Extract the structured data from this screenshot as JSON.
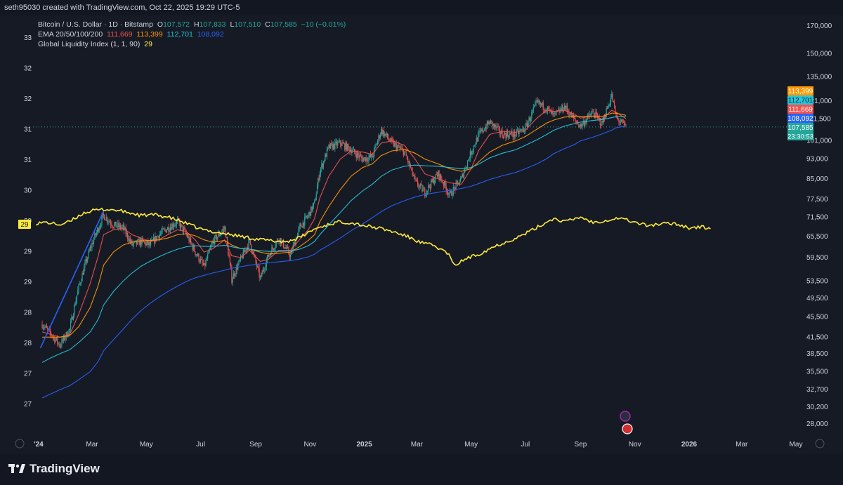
{
  "header": {
    "caption": "seth95030 created with TradingView.com, Oct 22, 2025 19:29 UTC-5"
  },
  "legend": {
    "symbol": "Bitcoin / U.S. Dollar · 1D · Bitstamp",
    "o_label": "O",
    "o_value": "107,572",
    "h_label": "H",
    "h_value": "107,833",
    "l_label": "L",
    "l_value": "107,510",
    "c_label": "C",
    "c_value": "107,585",
    "change": "−10 (−0.01%)",
    "ema_label": "EMA 20/50/100/200",
    "ema_values": [
      "111,669",
      "113,399",
      "112,701",
      "108,092"
    ],
    "gli_label": "Global Liquidity Index (1, 1, 90)",
    "gli_value": "29"
  },
  "footer": {
    "brand": "TradingView"
  },
  "colors": {
    "background": "#161a25",
    "candle_up": "#26a69a",
    "candle_down": "#ef5350",
    "ema20": "#ef5350",
    "ema50": "#ff9800",
    "ema100": "#26c6da",
    "ema200": "#2962ff",
    "liquidity": "#ffeb3b",
    "trendline": "#2962ff"
  },
  "chart_data": {
    "type": "line",
    "x_axis": {
      "labels": [
        "2024",
        "Mar",
        "May",
        "Jul",
        "Sep",
        "Nov",
        "2025",
        "Mar",
        "May",
        "Jul",
        "Sep",
        "Nov",
        "2026",
        "Mar",
        "May"
      ],
      "bold": [
        true,
        false,
        false,
        false,
        false,
        false,
        true,
        false,
        false,
        false,
        false,
        false,
        true,
        false,
        false
      ]
    },
    "left_axis": {
      "ticks": [
        "33",
        "32",
        "32",
        "31",
        "31",
        "30",
        "29",
        "29",
        "29",
        "28",
        "28",
        "27",
        "27"
      ]
    },
    "right_axis": {
      "scale": "log",
      "ticks": [
        170000,
        150000,
        135000,
        121000,
        111500,
        101000,
        93000,
        85000,
        77500,
        71500,
        65500,
        59500,
        53500,
        49500,
        45500,
        41500,
        38500,
        35500,
        32700,
        30200,
        28000
      ],
      "tick_labels": [
        "170,000",
        "150,000",
        "135,000",
        "121,000",
        "111,500",
        "101,000",
        "93,000",
        "85,000",
        "77,500",
        "71,500",
        "65,500",
        "59,500",
        "53,500",
        "49,500",
        "45,500",
        "41,500",
        "38,500",
        "35,500",
        "32,700",
        "30,200",
        "28,000"
      ]
    },
    "price_tags": [
      {
        "value": "113,399",
        "color": "#ff9800",
        "price": 113399
      },
      {
        "value": "112,701",
        "color": "#26c6da",
        "price": 112701
      },
      {
        "value": "111,669",
        "color": "#ef5350",
        "price": 111669
      },
      {
        "value": "108,092",
        "color": "#2962ff",
        "price": 108092
      },
      {
        "value": "107,585",
        "color": "#26a69a",
        "price": 107585
      }
    ],
    "countdown": "23:30:53",
    "liquidity_tag": "29",
    "series": [
      {
        "name": "Bitcoin / U.S. Dollar",
        "kind": "candles",
        "dates": [
          "2024-01-05",
          "2024-01-15",
          "2024-01-25",
          "2024-02-05",
          "2024-02-15",
          "2024-02-28",
          "2024-03-08",
          "2024-03-14",
          "2024-03-25",
          "2024-04-05",
          "2024-04-15",
          "2024-04-25",
          "2024-05-05",
          "2024-05-15",
          "2024-05-25",
          "2024-06-05",
          "2024-06-15",
          "2024-06-25",
          "2024-07-05",
          "2024-07-15",
          "2024-07-28",
          "2024-08-05",
          "2024-08-15",
          "2024-08-25",
          "2024-09-06",
          "2024-09-15",
          "2024-09-27",
          "2024-10-10",
          "2024-10-20",
          "2024-10-30",
          "2024-11-06",
          "2024-11-12",
          "2024-11-22",
          "2024-12-05",
          "2024-12-17",
          "2024-12-30",
          "2025-01-10",
          "2025-01-20",
          "2025-02-01",
          "2025-02-15",
          "2025-02-27",
          "2025-03-10",
          "2025-03-25",
          "2025-04-07",
          "2025-04-20",
          "2025-05-01",
          "2025-05-10",
          "2025-05-22",
          "2025-06-05",
          "2025-06-20",
          "2025-07-01",
          "2025-07-14",
          "2025-07-25",
          "2025-08-02",
          "2025-08-14",
          "2025-08-25",
          "2025-09-01",
          "2025-09-15",
          "2025-09-25",
          "2025-10-06",
          "2025-10-11",
          "2025-10-22"
        ],
        "close": [
          44000,
          42000,
          40000,
          43000,
          52000,
          62000,
          68000,
          72000,
          69000,
          68000,
          63000,
          64000,
          63000,
          66000,
          68000,
          70000,
          66000,
          61000,
          57000,
          64000,
          68000,
          54000,
          59000,
          64000,
          54000,
          60000,
          65000,
          60000,
          68000,
          72000,
          76000,
          88000,
          98000,
          100000,
          97000,
          93000,
          94000,
          106000,
          100000,
          96000,
          84000,
          80000,
          87000,
          79000,
          85000,
          96000,
          104000,
          110000,
          104000,
          104000,
          107000,
          120000,
          117000,
          113000,
          118000,
          111000,
          108000,
          115000,
          109000,
          124000,
          112000,
          107585
        ]
      },
      {
        "name": "EMA 20",
        "values": [
          42500,
          42000,
          41500,
          42000,
          46000,
          53000,
          60000,
          66000,
          67500,
          68000,
          66000,
          65000,
          64000,
          64500,
          66000,
          67500,
          67000,
          64500,
          61000,
          62000,
          64500,
          60000,
          59500,
          61500,
          58500,
          59000,
          61500,
          61500,
          64500,
          67500,
          71000,
          78000,
          86000,
          93000,
          96500,
          96000,
          95000,
          100000,
          101000,
          99000,
          93000,
          87000,
          85000,
          83500,
          83000,
          89000,
          97000,
          104000,
          105500,
          105000,
          106000,
          112000,
          116000,
          115500,
          116000,
          114000,
          112000,
          113000,
          111500,
          116000,
          115000,
          111669
        ]
      },
      {
        "name": "EMA 50",
        "values": [
          41500,
          41500,
          41500,
          41800,
          43500,
          47500,
          52500,
          57500,
          61000,
          63000,
          63800,
          64200,
          64300,
          64500,
          65000,
          66000,
          66300,
          65700,
          64500,
          63800,
          64300,
          63000,
          62000,
          61800,
          61000,
          60500,
          60700,
          61000,
          62500,
          64300,
          66000,
          70000,
          75000,
          81000,
          86000,
          89500,
          91000,
          94500,
          96500,
          97200,
          95500,
          93000,
          91000,
          89000,
          88000,
          89000,
          92000,
          96000,
          99000,
          101000,
          103000,
          106500,
          109500,
          111000,
          112500,
          113000,
          112700,
          113000,
          112800,
          114500,
          114500,
          113399
        ]
      },
      {
        "name": "EMA 100",
        "values": [
          37000,
          37800,
          38500,
          39200,
          40500,
          42500,
          45000,
          48000,
          51000,
          53500,
          55500,
          57200,
          58500,
          59700,
          60800,
          61800,
          62500,
          62800,
          62600,
          62600,
          62900,
          62500,
          62000,
          61800,
          61400,
          61200,
          61200,
          61300,
          61800,
          62800,
          64000,
          66000,
          69000,
          73000,
          77000,
          80500,
          83000,
          86000,
          88500,
          90000,
          90500,
          90200,
          90000,
          89500,
          89000,
          89500,
          91000,
          93500,
          95500,
          97000,
          99000,
          101500,
          104000,
          106000,
          108000,
          109200,
          110000,
          110800,
          111200,
          112200,
          112700,
          112701
        ]
      },
      {
        "name": "EMA 200",
        "values": [
          31500,
          32100,
          32700,
          33300,
          34200,
          35500,
          37200,
          39000,
          41000,
          43000,
          45000,
          46800,
          48300,
          49700,
          51000,
          52300,
          53400,
          54300,
          54900,
          55500,
          56200,
          56700,
          57100,
          57500,
          57800,
          58100,
          58400,
          58700,
          59100,
          59700,
          60400,
          61500,
          63000,
          65000,
          67200,
          69300,
          71300,
          73300,
          75300,
          77000,
          78300,
          79200,
          80000,
          80700,
          81400,
          82200,
          83300,
          84800,
          86200,
          87500,
          89000,
          91000,
          93200,
          95300,
          97500,
          99300,
          101000,
          102700,
          104200,
          106000,
          107200,
          108092
        ]
      },
      {
        "name": "Global Liquidity Index (1, 1, 90)",
        "dates": [
          "2023-12-29",
          "2024-01-10",
          "2024-01-25",
          "2024-02-05",
          "2024-02-20",
          "2024-03-01",
          "2024-03-15",
          "2024-03-28",
          "2024-04-10",
          "2024-04-25",
          "2024-05-10",
          "2024-05-25",
          "2024-06-10",
          "2024-06-25",
          "2024-07-05",
          "2024-07-20",
          "2024-08-05",
          "2024-08-20",
          "2024-09-05",
          "2024-09-20",
          "2024-10-05",
          "2024-10-20",
          "2024-11-05",
          "2024-11-20",
          "2024-12-05",
          "2024-12-20",
          "2025-01-05",
          "2025-01-20",
          "2025-02-05",
          "2025-02-20",
          "2025-03-05",
          "2025-03-20",
          "2025-04-05",
          "2025-04-12",
          "2025-04-25",
          "2025-05-10",
          "2025-05-25",
          "2025-06-10",
          "2025-06-25",
          "2025-07-05",
          "2025-07-15",
          "2025-08-01",
          "2025-08-15",
          "2025-09-01",
          "2025-09-15",
          "2025-10-01",
          "2025-10-15",
          "2025-11-01",
          "2025-11-15",
          "2025-12-01",
          "2025-12-15",
          "2026-01-01",
          "2026-01-15",
          "2026-01-25"
        ],
        "values": [
          30000,
          30500,
          29000,
          31000,
          36500,
          38000,
          39000,
          38500,
          37000,
          35000,
          35500,
          34000,
          31000,
          27500,
          25500,
          24000,
          22500,
          21000,
          19500,
          18500,
          18000,
          20500,
          26000,
          29000,
          31000,
          30000,
          28000,
          26500,
          24000,
          21000,
          17500,
          15500,
          10500,
          2500,
          7000,
          10000,
          14500,
          18000,
          21500,
          24500,
          27500,
          33000,
          31000,
          34000,
          30500,
          32000,
          33500,
          30500,
          28500,
          29500,
          30000,
          27000,
          27500,
          26500
        ]
      }
    ]
  }
}
